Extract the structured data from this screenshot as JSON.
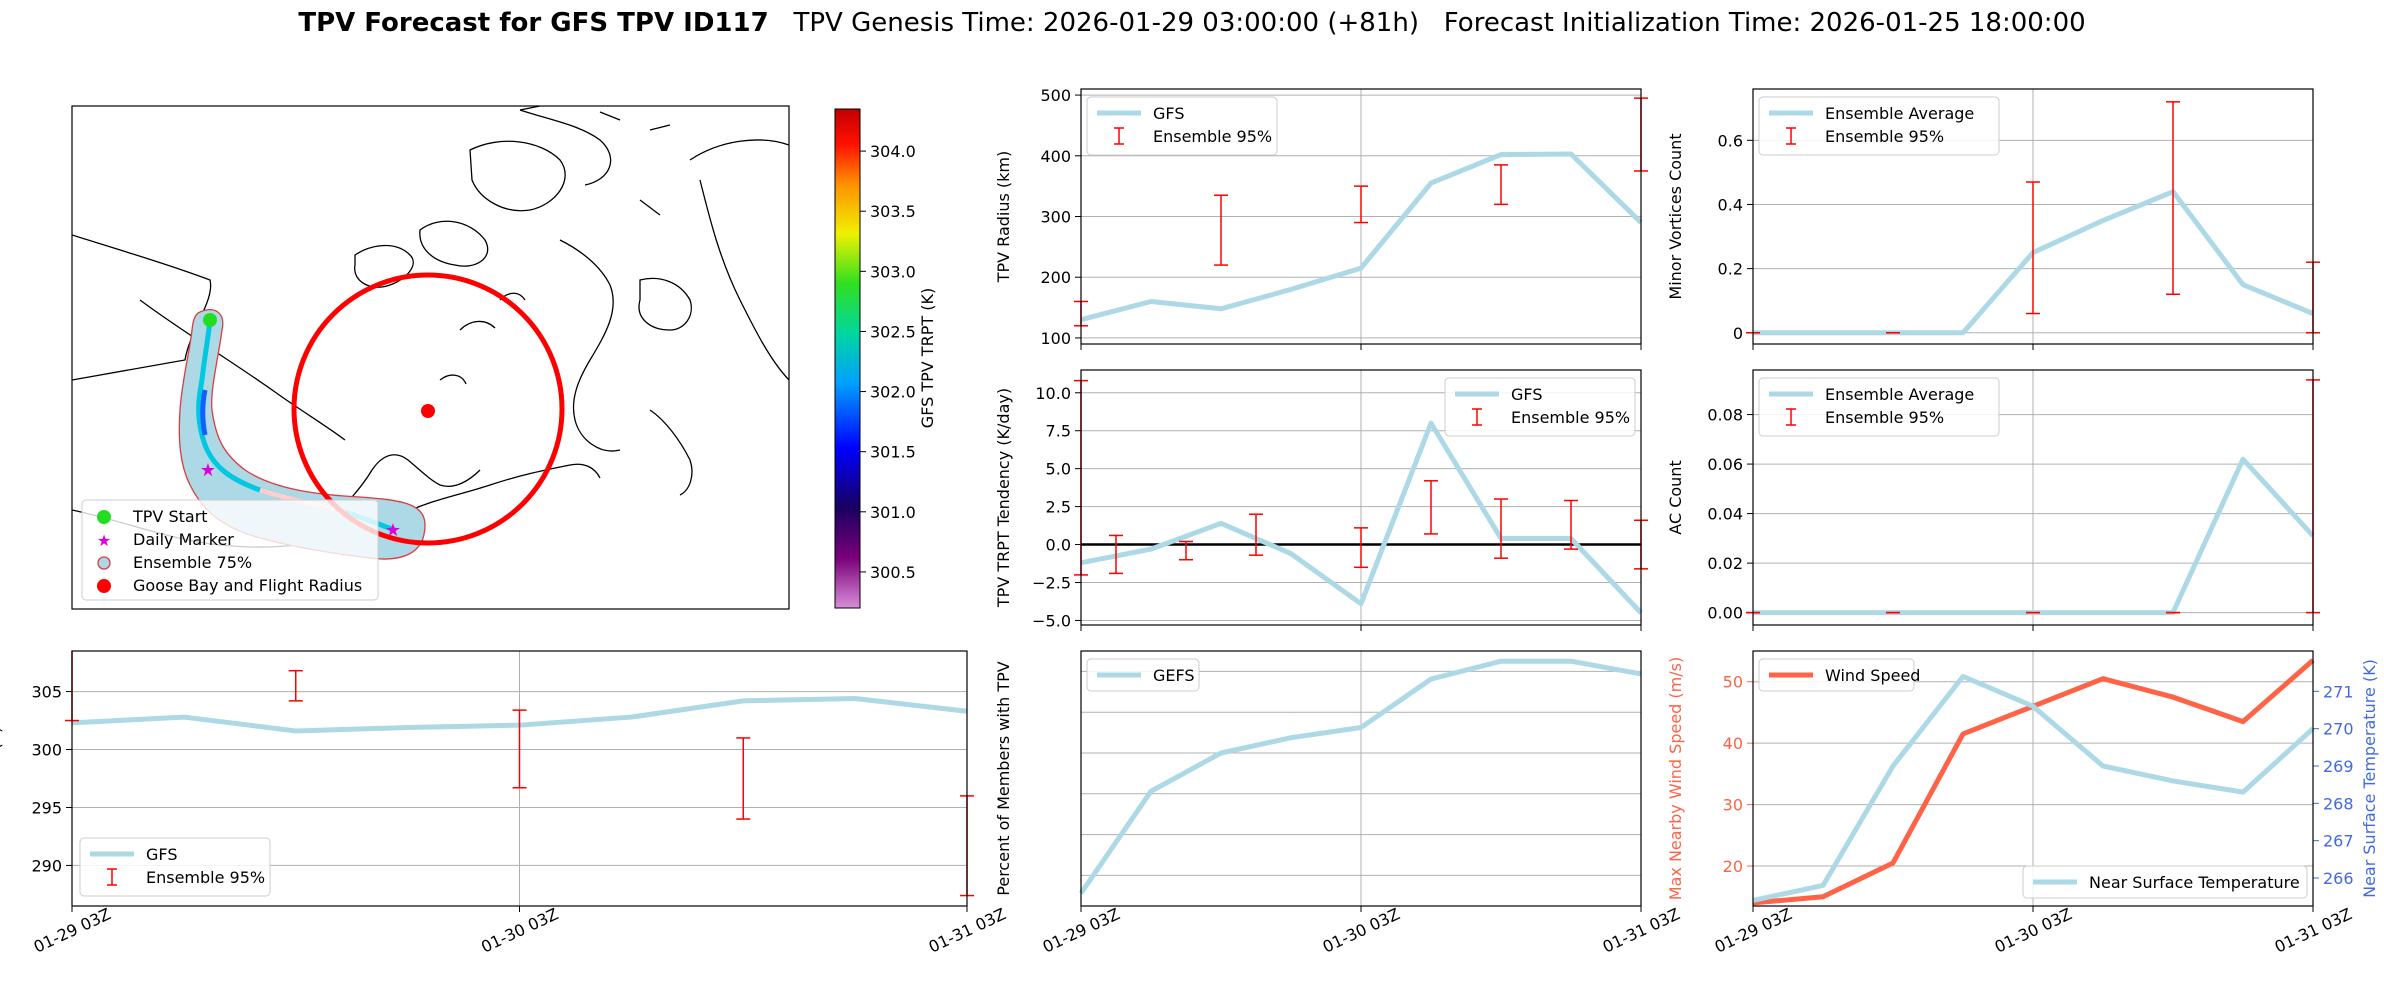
{
  "title": {
    "bold": "TPV Forecast for GFS TPV ID117",
    "genesis": "TPV Genesis Time: 2026-01-29 03:00:00 (+81h)",
    "init": "Forecast Initialization Time: 2026-01-25 18:00:00"
  },
  "colors": {
    "gfs": "#add8e6",
    "ensemble": "#ff0000",
    "wind": "#ff6347",
    "temp_axis": "#4169e1"
  },
  "x_tick_labels": [
    "01-29 03Z",
    "01-30 03Z",
    "01-31 03Z"
  ],
  "map": {
    "colorbar_label": "GFS TPV TRPT (K)",
    "colorbar_ticks": [
      "300.5",
      "301.0",
      "301.5",
      "302.0",
      "302.5",
      "303.0",
      "303.5",
      "304.0"
    ],
    "colorbar_range": [
      300.2,
      304.35
    ],
    "legend": [
      "TPV Start",
      "Daily Marker",
      "Ensemble 75%",
      "Goose Bay and Flight Radius"
    ]
  },
  "chart_data": [
    {
      "id": "trpt",
      "type": "line",
      "title": "",
      "xlabel": "",
      "ylabel": "TPV TRPT (K)",
      "x_hours": [
        0,
        6,
        12,
        18,
        24,
        30,
        36,
        42,
        48
      ],
      "ylim": [
        286.5,
        308.5
      ],
      "yticks": [
        290,
        295,
        300,
        305
      ],
      "series": [
        {
          "name": "GFS",
          "values": [
            302.3,
            302.8,
            301.6,
            301.9,
            302.1,
            302.8,
            304.2,
            304.4,
            303.3
          ]
        }
      ],
      "error_bars": {
        "name": "Ensemble 95%",
        "points": [
          {
            "x": 0,
            "low": 302.5,
            "high": 312.0
          },
          {
            "x": 12,
            "low": 304.2,
            "high": 306.8
          },
          {
            "x": 24,
            "low": 296.7,
            "high": 303.4
          },
          {
            "x": 36,
            "low": 294.0,
            "high": 301.0
          },
          {
            "x": 48,
            "low": 287.4,
            "high": 296.0
          }
        ]
      },
      "legend_position": "lower-left"
    },
    {
      "id": "radius",
      "type": "line",
      "ylabel": "TPV Radius (km)",
      "x_hours": [
        0,
        6,
        12,
        18,
        24,
        30,
        36,
        42,
        48
      ],
      "ylim": [
        90,
        510
      ],
      "yticks": [
        100,
        200,
        300,
        400,
        500
      ],
      "series": [
        {
          "name": "GFS",
          "values": [
            130,
            160,
            148,
            180,
            215,
            355,
            402,
            403,
            290
          ]
        }
      ],
      "error_bars": {
        "name": "Ensemble 95%",
        "points": [
          {
            "x": 0,
            "low": 120,
            "high": 160
          },
          {
            "x": 12,
            "low": 220,
            "high": 335
          },
          {
            "x": 24,
            "low": 290,
            "high": 350
          },
          {
            "x": 36,
            "low": 320,
            "high": 385
          },
          {
            "x": 48,
            "low": 375,
            "high": 495
          }
        ]
      },
      "legend_position": "top-left"
    },
    {
      "id": "tendency",
      "type": "line",
      "ylabel": "TPV TRPT Tendency (K/day)",
      "x_hours": [
        0,
        6,
        12,
        18,
        24,
        30,
        36,
        42,
        48
      ],
      "ylim": [
        -5.3,
        11.5
      ],
      "yticks": [
        -5.0,
        -2.5,
        0.0,
        2.5,
        5.0,
        7.5,
        10.0
      ],
      "ytick_labels": [
        "−5.0",
        "−2.5",
        "0.0",
        "2.5",
        "5.0",
        "7.5",
        "10.0"
      ],
      "zero_line": true,
      "series": [
        {
          "name": "GFS",
          "values": [
            -1.2,
            -0.3,
            1.4,
            -0.6,
            -3.9,
            8.0,
            0.4,
            0.4,
            -4.5
          ]
        }
      ],
      "error_bars": {
        "name": "Ensemble 95%",
        "points": [
          {
            "x": 0,
            "low": -2.0,
            "high": 10.8
          },
          {
            "x": 3,
            "low": -1.9,
            "high": 0.6
          },
          {
            "x": 9,
            "low": -1.0,
            "high": 0.2
          },
          {
            "x": 15,
            "low": -0.7,
            "high": 2.0
          },
          {
            "x": 24,
            "low": -1.5,
            "high": 1.1
          },
          {
            "x": 30,
            "low": 0.7,
            "high": 4.2
          },
          {
            "x": 36,
            "low": -0.9,
            "high": 3.0
          },
          {
            "x": 42,
            "low": -0.3,
            "high": 2.9
          },
          {
            "x": 48,
            "low": -1.6,
            "high": 1.6
          }
        ]
      },
      "legend_position": "top-right"
    },
    {
      "id": "members",
      "type": "line",
      "ylabel": "Percent of Members with TPV",
      "x_hours": [
        0,
        6,
        12,
        18,
        24,
        30,
        36,
        42,
        48
      ],
      "ylim": [
        0,
        100
      ],
      "yticks": [],
      "series": [
        {
          "name": "GEFS",
          "values": [
            5,
            45,
            60,
            66,
            70,
            89,
            96,
            96,
            91
          ]
        }
      ],
      "legend_position": "top-left"
    },
    {
      "id": "minor",
      "type": "line",
      "ylabel": "Minor Vortices Count",
      "x_hours": [
        0,
        6,
        12,
        18,
        24,
        30,
        36,
        42,
        48
      ],
      "ylim": [
        -0.035,
        0.76
      ],
      "yticks": [
        0.0,
        0.2,
        0.4,
        0.6
      ],
      "series": [
        {
          "name": "Ensemble Average",
          "values": [
            0,
            0,
            0,
            0,
            0.25,
            0.35,
            0.44,
            0.15,
            0.06
          ]
        }
      ],
      "error_bars": {
        "name": "Ensemble 95%",
        "points": [
          {
            "x": 0,
            "low": 0,
            "high": 0
          },
          {
            "x": 12,
            "low": 0,
            "high": 0
          },
          {
            "x": 24,
            "low": 0.06,
            "high": 0.47
          },
          {
            "x": 36,
            "low": 0.12,
            "high": 0.72
          },
          {
            "x": 48,
            "low": 0,
            "high": 0.22
          }
        ]
      },
      "legend_position": "top-left"
    },
    {
      "id": "ac",
      "type": "line",
      "ylabel": "AC Count",
      "x_hours": [
        0,
        6,
        12,
        18,
        24,
        30,
        36,
        42,
        48
      ],
      "ylim": [
        -0.005,
        0.098
      ],
      "yticks": [
        0.0,
        0.02,
        0.04,
        0.06,
        0.08
      ],
      "ytick_labels": [
        "0.00",
        "0.02",
        "0.04",
        "0.06",
        "0.08"
      ],
      "series": [
        {
          "name": "Ensemble Average",
          "values": [
            0,
            0,
            0,
            0,
            0,
            0,
            0,
            0.062,
            0.031
          ]
        }
      ],
      "error_bars": {
        "name": "Ensemble 95%",
        "points": [
          {
            "x": 0,
            "low": 0,
            "high": 0
          },
          {
            "x": 12,
            "low": 0,
            "high": 0
          },
          {
            "x": 24,
            "low": 0,
            "high": 0
          },
          {
            "x": 36,
            "low": 0,
            "high": 0
          },
          {
            "x": 48,
            "low": 0,
            "high": 0.094
          }
        ]
      },
      "legend_position": "top-left"
    },
    {
      "id": "wind",
      "type": "line",
      "ylabel": "Max Nearby Wind Speed (m/s)",
      "ylabel_right": "Near Surface Temperature (K)",
      "x_hours": [
        0,
        6,
        12,
        18,
        24,
        30,
        36,
        42,
        48
      ],
      "ylim": [
        13.5,
        55
      ],
      "yticks": [
        20,
        30,
        40,
        50
      ],
      "ylim_right": [
        265.25,
        272.08
      ],
      "yticks_right": [
        266,
        267,
        268,
        269,
        270,
        271
      ],
      "series": [
        {
          "name": "Wind Speed",
          "values": [
            14,
            15,
            20.5,
            41.5,
            46,
            50.5,
            47.5,
            43.5,
            53.5
          ],
          "axis": "left"
        },
        {
          "name": "Near Surface Temperature",
          "values": [
            265.4,
            265.8,
            269.0,
            271.4,
            270.6,
            269.0,
            268.6,
            268.3,
            270.0
          ],
          "axis": "right"
        }
      ],
      "legend_position": "top-left / bottom-right"
    }
  ]
}
